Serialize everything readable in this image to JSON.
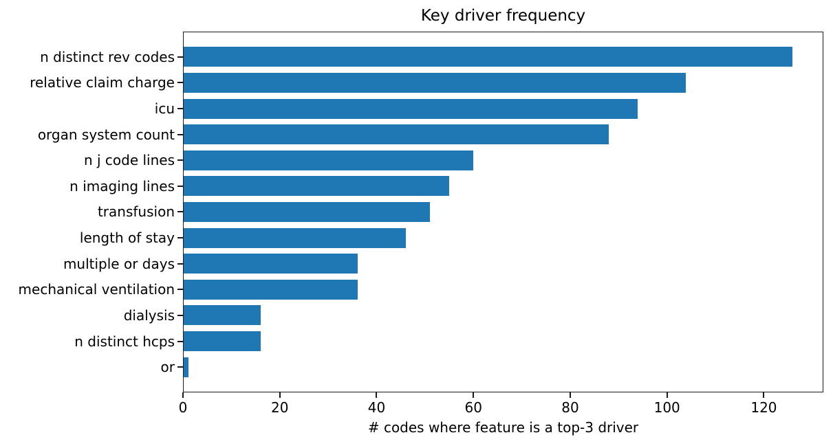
{
  "figure": {
    "background": "#ffffff"
  },
  "chart_data": {
    "type": "bar",
    "orientation": "horizontal",
    "title": "Key driver frequency",
    "xlabel": "# codes where feature is a top-3 driver",
    "ylabel": "",
    "categories": [
      "n distinct rev codes",
      "relative claim charge",
      "icu",
      "organ system count",
      "n j code lines",
      "n imaging lines",
      "transfusion",
      "length of stay",
      "multiple or days",
      "mechanical ventilation",
      "dialysis",
      "n distinct hcps",
      "or"
    ],
    "values": [
      126,
      104,
      94,
      88,
      60,
      55,
      51,
      46,
      36,
      36,
      16,
      16,
      1
    ],
    "xticks": [
      0,
      20,
      40,
      60,
      80,
      100,
      120
    ],
    "xlim": [
      0,
      132.3
    ],
    "bar_color": "#1f77b4",
    "axis_color": "#1a1a1a",
    "text_color": "#000000",
    "grid": false,
    "legend": "none"
  }
}
